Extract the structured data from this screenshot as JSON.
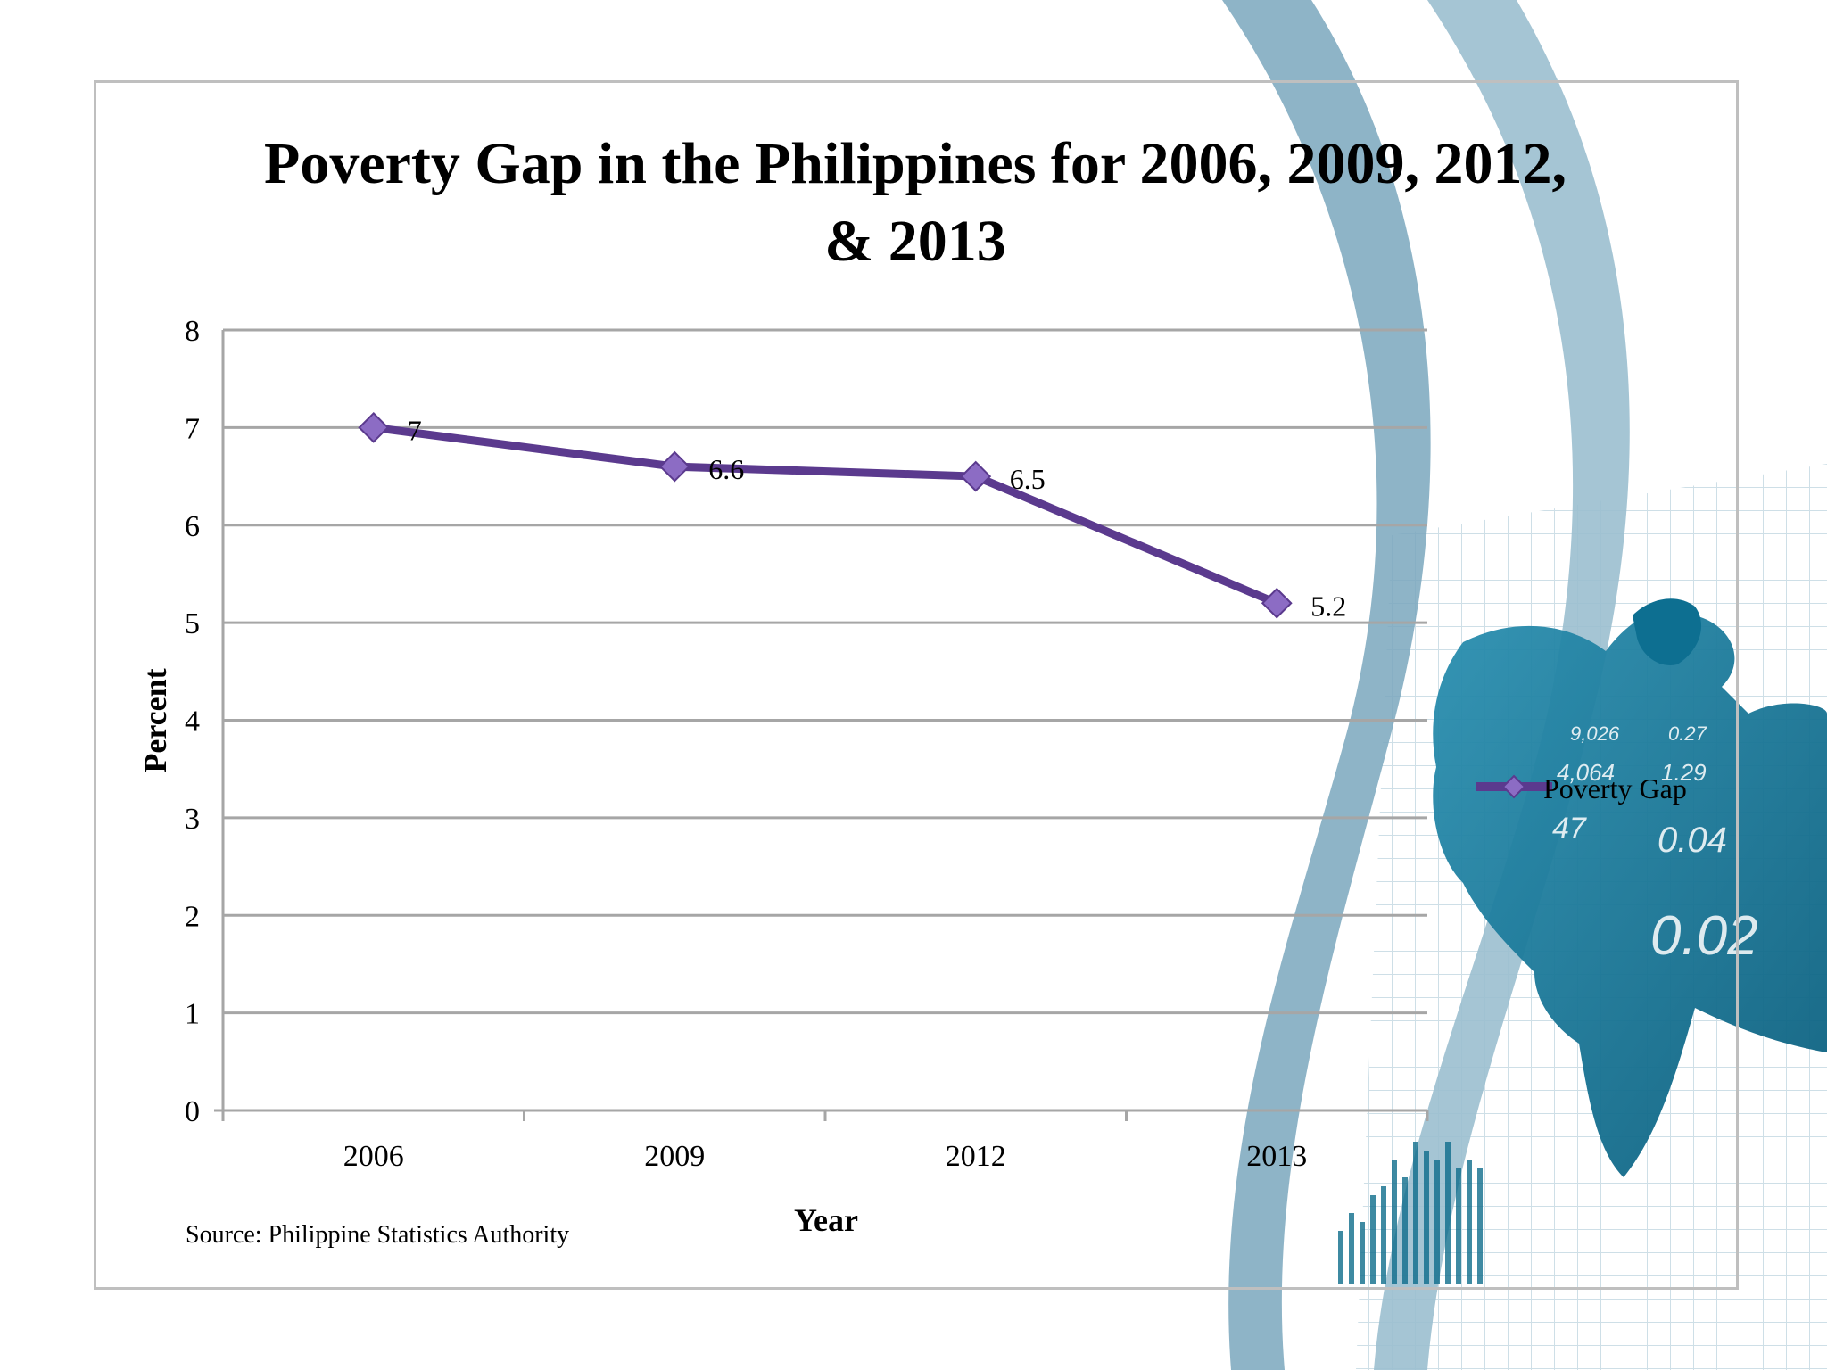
{
  "colors": {
    "series": "#5b3a8e",
    "marker_fill": "#8c6cc4",
    "grid": "#a6a6a6",
    "decor_blue": "#7aa7bd",
    "decor_dark": "#0f6d8c"
  },
  "decor_numbers": [
    "9,026",
    "0.27",
    "4,064",
    "1.29",
    "47",
    "0.04",
    "0.02"
  ],
  "chart_data": {
    "type": "line",
    "title": "Poverty Gap in the Philippines for 2006, 2009, 2012, & 2013",
    "title_lines": [
      "Poverty Gap in the Philippines for 2006, 2009, 2012,",
      "& 2013"
    ],
    "categories": [
      "2006",
      "2009",
      "2012",
      "2013"
    ],
    "series": [
      {
        "name": "Poverty Gap",
        "values": [
          7,
          6.6,
          6.5,
          5.2
        ],
        "labels": [
          "7",
          "6.6",
          "6.5",
          "5.2"
        ]
      }
    ],
    "xlabel": "Year",
    "ylabel": "Percent",
    "ylim": [
      0,
      8
    ],
    "yticks": [
      "0",
      "1",
      "2",
      "3",
      "4",
      "5",
      "6",
      "7",
      "8"
    ],
    "grid": true,
    "legend": "right",
    "source": "Source: Philippine Statistics Authority"
  }
}
